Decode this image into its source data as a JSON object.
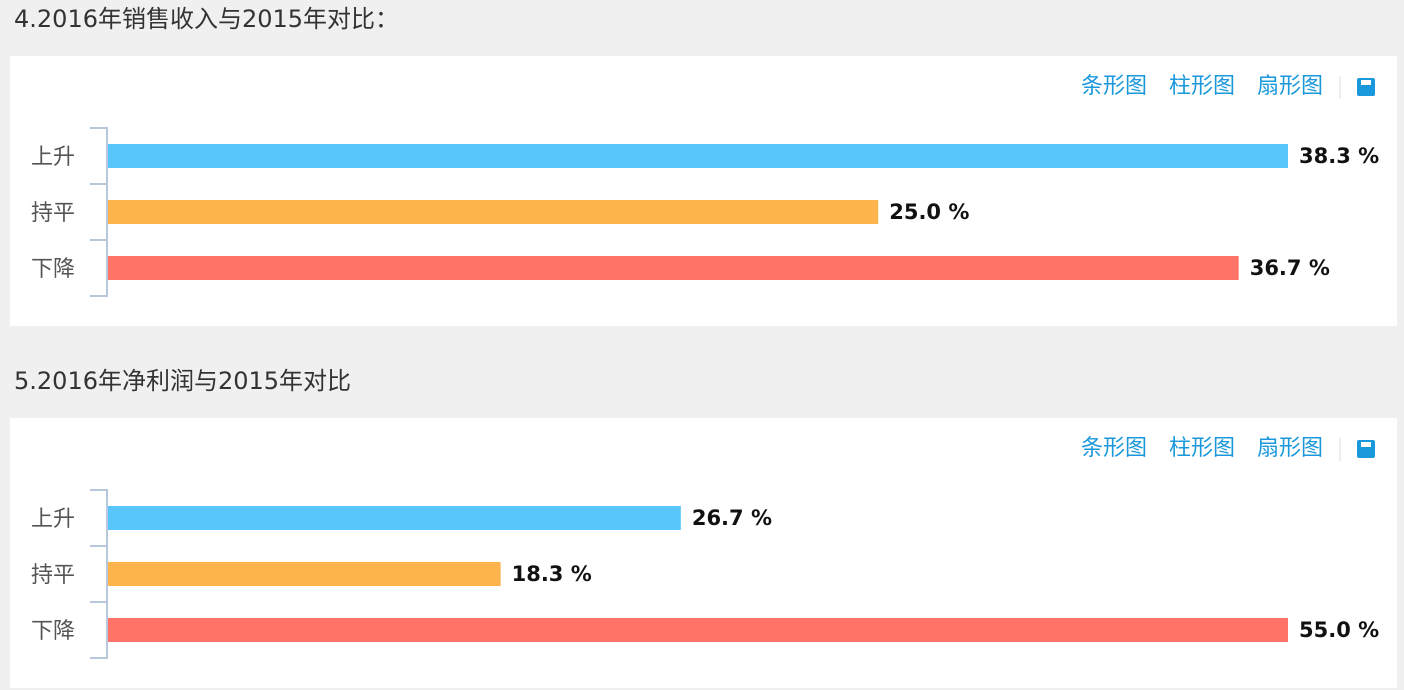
{
  "chart_data": [
    {
      "type": "bar",
      "title": "4.2016年销售收入与2015年对比：",
      "toolbar": [
        "条形图",
        "柱形图",
        "扇形图"
      ],
      "categories": [
        "上升",
        "持平",
        "下降"
      ],
      "values": [
        38.3,
        25.0,
        36.7
      ],
      "value_labels": [
        "38.3 %",
        "25.0 %",
        "36.7 %"
      ],
      "colors": [
        "#58c6fa",
        "#fdb44d",
        "#ff7466"
      ]
    },
    {
      "type": "bar",
      "title": "5.2016年净利润与2015年对比",
      "toolbar": [
        "条形图",
        "柱形图",
        "扇形图"
      ],
      "categories": [
        "上升",
        "持平",
        "下降"
      ],
      "values": [
        26.7,
        18.3,
        55.0
      ],
      "value_labels": [
        "26.7 %",
        "18.3 %",
        "55.0 %"
      ],
      "colors": [
        "#58c6fa",
        "#fdb44d",
        "#ff7466"
      ]
    }
  ]
}
